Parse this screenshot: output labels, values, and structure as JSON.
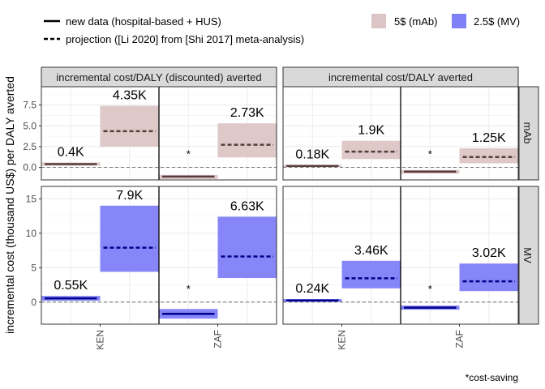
{
  "chart_data": {
    "type": "bar",
    "ylabel": "incremental cost (thousand US$) per DALY averted",
    "legend": {
      "lines": [
        {
          "style": "solid",
          "label": "new data (hospital-based + HUS)"
        },
        {
          "style": "dashed",
          "label": "projection ([Li 2020] from [Shi 2017] meta-analysis)"
        }
      ],
      "fills": [
        {
          "label": "5$ (mAb)",
          "color": "#dcc5c5"
        },
        {
          "label": "2.5$ (MV)",
          "color": "#8080f8"
        }
      ]
    },
    "col_strips": [
      "incremental cost/DALY (discounted) averted",
      "incremental cost/DALY averted"
    ],
    "row_strips": [
      "mAb",
      "MV"
    ],
    "categories": [
      "KEN",
      "ZAF"
    ],
    "note": "*cost-saving",
    "cost_saving_mark": "*",
    "rows": [
      {
        "yrange": [
          -1.5,
          9.7
        ],
        "yticks": [
          0.0,
          2.5,
          5.0,
          7.5
        ],
        "yticklabels": [
          "0.0",
          "2.5",
          "5.0",
          "7.5"
        ],
        "panels": [
          {
            "bars": [
              {
                "cat": "KEN",
                "group": "new",
                "low": 0.2,
                "high": 0.6,
                "mid": 0.4,
                "label": "0.4K"
              },
              {
                "cat": "KEN",
                "group": "proj",
                "low": 2.5,
                "high": 7.4,
                "mid": 4.35,
                "label": "4.35K"
              },
              {
                "cat": "ZAF",
                "group": "new",
                "low": -1.4,
                "high": -0.9,
                "mid": -1.1,
                "label": "*"
              },
              {
                "cat": "ZAF",
                "group": "proj",
                "low": 1.2,
                "high": 5.3,
                "mid": 2.73,
                "label": "2.73K"
              }
            ]
          },
          {
            "bars": [
              {
                "cat": "KEN",
                "group": "new",
                "low": 0.05,
                "high": 0.3,
                "mid": 0.18,
                "label": "0.18K"
              },
              {
                "cat": "KEN",
                "group": "proj",
                "low": 1.0,
                "high": 3.2,
                "mid": 1.9,
                "label": "1.9K"
              },
              {
                "cat": "ZAF",
                "group": "new",
                "low": -0.75,
                "high": -0.3,
                "mid": -0.5,
                "label": "*"
              },
              {
                "cat": "ZAF",
                "group": "proj",
                "low": 0.5,
                "high": 2.3,
                "mid": 1.25,
                "label": "1.25K"
              }
            ]
          }
        ]
      },
      {
        "yrange": [
          -3.2,
          16.8
        ],
        "yticks": [
          0,
          5,
          10,
          15
        ],
        "yticklabels": [
          "0",
          "5",
          "10",
          "15"
        ],
        "panels": [
          {
            "bars": [
              {
                "cat": "KEN",
                "group": "new",
                "low": 0.2,
                "high": 0.9,
                "mid": 0.55,
                "label": "0.55K"
              },
              {
                "cat": "KEN",
                "group": "proj",
                "low": 4.4,
                "high": 14.0,
                "mid": 7.9,
                "label": "7.9K"
              },
              {
                "cat": "ZAF",
                "group": "new",
                "low": -2.4,
                "high": -1.0,
                "mid": -1.7,
                "label": "*"
              },
              {
                "cat": "ZAF",
                "group": "proj",
                "low": 3.5,
                "high": 12.4,
                "mid": 6.63,
                "label": "6.63K"
              }
            ]
          },
          {
            "bars": [
              {
                "cat": "KEN",
                "group": "new",
                "low": 0.05,
                "high": 0.45,
                "mid": 0.24,
                "label": "0.24K"
              },
              {
                "cat": "KEN",
                "group": "proj",
                "low": 2.0,
                "high": 6.0,
                "mid": 3.46,
                "label": "3.46K"
              },
              {
                "cat": "ZAF",
                "group": "new",
                "low": -1.1,
                "high": -0.5,
                "mid": -0.8,
                "label": "*"
              },
              {
                "cat": "ZAF",
                "group": "proj",
                "low": 1.6,
                "high": 5.6,
                "mid": 3.02,
                "label": "3.02K"
              }
            ]
          }
        ]
      }
    ]
  }
}
